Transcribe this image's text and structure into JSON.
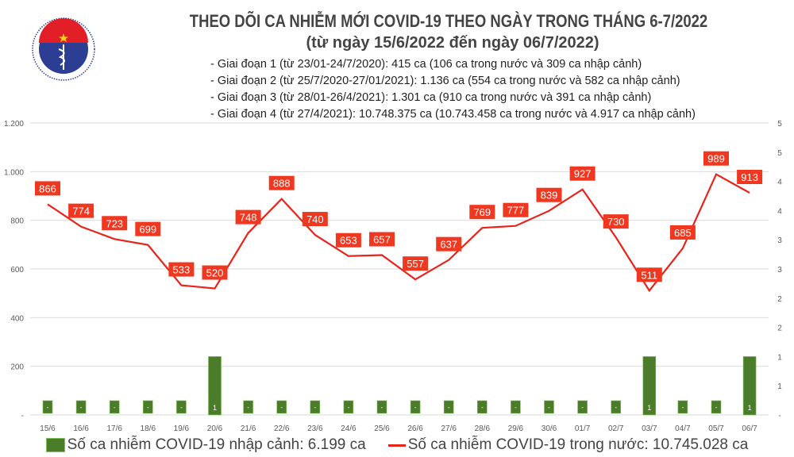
{
  "logo": {
    "text_top": "BỘ Y TẾ",
    "text_bottom": "MINISTRY OF HEALTH",
    "colors": {
      "blue": "#2b3e93",
      "red": "#e21f26",
      "star": "#f7d417"
    }
  },
  "title": "THEO DÕI CA NHIỄM MỚI COVID-19 THEO NGÀY TRONG THÁNG 6-7/2022",
  "subtitle": "(từ ngày 15/6/2022 đến ngày 06/7/2022)",
  "phases": [
    "- Giai đoạn 1 (từ 23/01-24/7/2020): 415 ca (106 ca trong nước và 309 ca nhập cảnh)",
    "- Giai đoạn 2 (từ 25/7/2020-27/01/2021): 1.136 ca (554 ca trong nước và 582 ca nhập cảnh)",
    "- Giai đoạn 3 (từ 28/01-26/4/2021): 1.301 ca (910 ca trong nước và 391 ca nhập cảnh)",
    "- Giai đoạn 4 (từ 27/4/2021): 10.748.375 ca (10.743.458 ca trong nước và 4.917 ca nhập cảnh)"
  ],
  "chart_data": {
    "type": "bar+line",
    "categories": [
      "15/6",
      "16/6",
      "17/6",
      "18/6",
      "19/6",
      "20/6",
      "21/6",
      "22/6",
      "23/6",
      "24/6",
      "25/6",
      "26/6",
      "27/6",
      "28/6",
      "29/6",
      "30/6",
      "01/7",
      "02/7",
      "03/7",
      "04/7",
      "05/7",
      "06/7"
    ],
    "series": [
      {
        "name": "Số ca nhiễm COVID-19 nhập cảnh: 6.199 ca",
        "type": "bar",
        "axis": "right",
        "color": "#4a7c2a",
        "values": [
          0,
          0,
          0,
          0,
          0,
          1,
          0,
          0,
          0,
          0,
          0,
          0,
          0,
          0,
          0,
          0,
          0,
          0,
          1,
          0,
          0,
          1
        ]
      },
      {
        "name": "Số ca nhiễm COVID-19 trong nước: 10.745.028 ca",
        "type": "line",
        "axis": "left",
        "color": "#e8231a",
        "values": [
          866,
          774,
          723,
          699,
          533,
          520,
          748,
          888,
          740,
          653,
          657,
          557,
          637,
          769,
          777,
          839,
          927,
          730,
          511,
          685,
          989,
          913
        ]
      }
    ],
    "left_axis": {
      "range": [
        0,
        1200
      ],
      "ticks": [
        "-",
        "200",
        "400",
        "600",
        "800",
        "1.000",
        "1.200"
      ]
    },
    "right_axis": {
      "range": [
        0,
        5
      ],
      "ticks": [
        "-",
        "1",
        "1",
        "2",
        "2",
        "3",
        "3",
        "4",
        "4",
        "5",
        "5"
      ]
    },
    "grid": true,
    "legend_position": "bottom",
    "zero_label": "-"
  }
}
